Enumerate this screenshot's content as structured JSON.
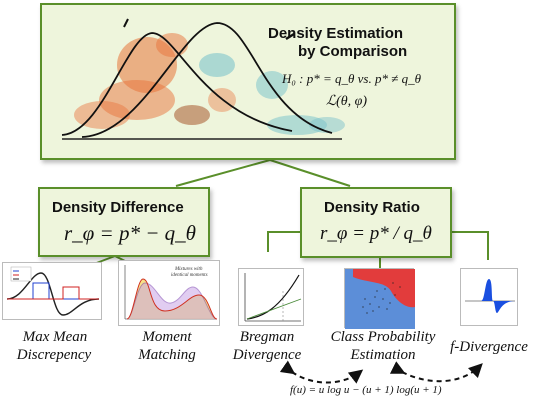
{
  "top": {
    "title_line1": "Density Estimation",
    "title_line2": "by Comparison",
    "hypothesis": "H₀ : p* = q_θ vs. p* ≠ q_θ",
    "loss": "ℒ(θ, φ)"
  },
  "difference": {
    "title": "Density Difference",
    "formula": "r_φ = p* − q_θ"
  },
  "ratio": {
    "title": "Density Ratio",
    "formula": "r_φ = p* / q_θ"
  },
  "methods": {
    "mmd_line1": "Max Mean",
    "mmd_line2": "Discrepency",
    "moment_line1": "Moment",
    "moment_line2": "Matching",
    "bregman_line1": "Bregman",
    "bregman_line2": "Divergence",
    "cpe_line1": "Class Probability",
    "cpe_line2": "Estimation",
    "fdiv": "f-Divergence"
  },
  "thumb_text": {
    "moment_note1": "Mixtures with",
    "moment_note2": "identical moments"
  },
  "bottom_formula": "f(u) = u log u − (u + 1) log(u + 1)",
  "colors": {
    "green_border": "#5a8f2a",
    "green_fill": "#eef5dc",
    "orange": "#e8743b",
    "teal": "#7fc4cc"
  }
}
